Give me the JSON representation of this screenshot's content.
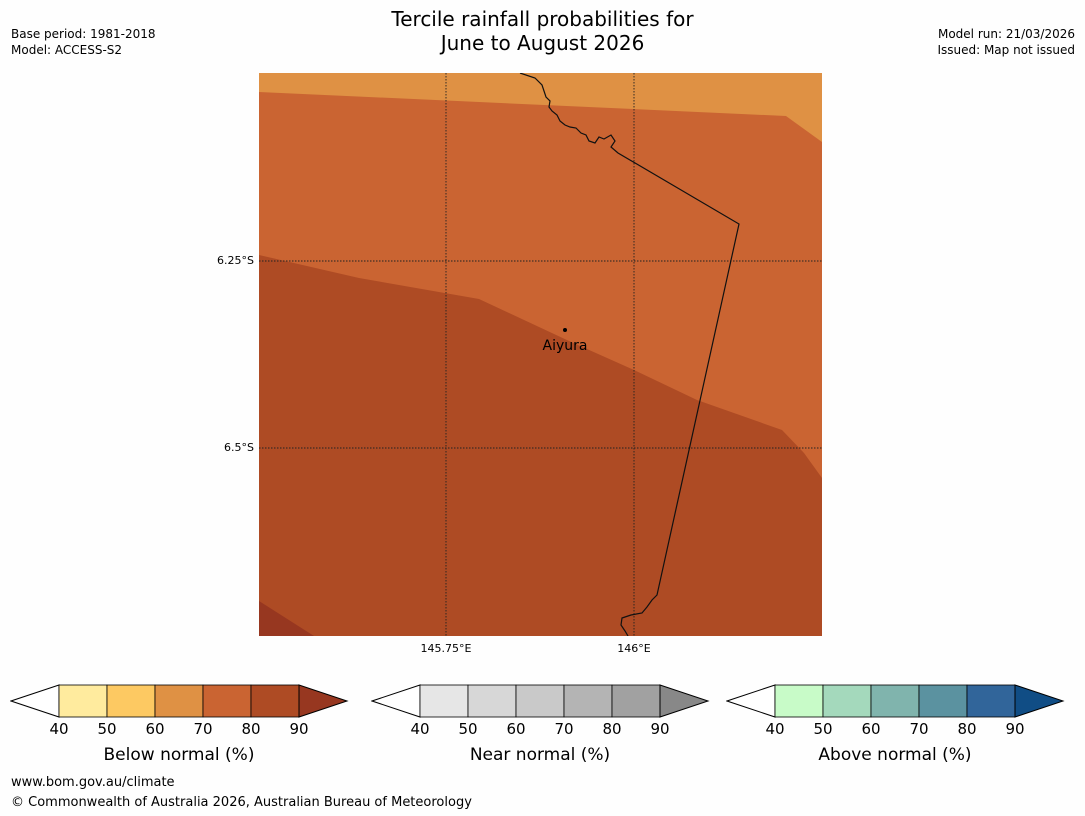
{
  "header": {
    "title_line1": "Tercile rainfall probabilities for",
    "title_line2": "June to August 2026",
    "base_period": "Base period: 1981-2018",
    "model": "Model: ACCESS-S2",
    "model_run": "Model run: 21/03/2026",
    "issued": "Issued: Map not issued"
  },
  "map": {
    "lat_labels": [
      "6.25°S",
      "6.5°S"
    ],
    "lon_labels": [
      "145.75°E",
      "146°E"
    ],
    "place": {
      "name": "Aiyura"
    },
    "fill_colors": {
      "cat_60_70": "#df9144",
      "cat_70_80": "#ca6432",
      "cat_80_90": "#ae4b24",
      "cat_90_plus": "#973720"
    }
  },
  "colorbars": [
    {
      "label": "Below normal (%)",
      "ticks": [
        "40",
        "50",
        "60",
        "70",
        "80",
        "90"
      ],
      "colors": [
        "#ffeb9e",
        "#fdc962",
        "#df9144",
        "#ca6432",
        "#ae4b24"
      ],
      "extend_color": "#973720"
    },
    {
      "label": "Near normal (%)",
      "ticks": [
        "40",
        "50",
        "60",
        "70",
        "80",
        "90"
      ],
      "colors": [
        "#e6e6e6",
        "#d7d7d7",
        "#c9c9c9",
        "#b4b4b4",
        "#a1a1a1"
      ],
      "extend_color": "#888888"
    },
    {
      "label": "Above normal (%)",
      "ticks": [
        "40",
        "50",
        "60",
        "70",
        "80",
        "90"
      ],
      "colors": [
        "#c8fbc8",
        "#a4d9bc",
        "#80b4ad",
        "#5b92a0",
        "#31659a"
      ],
      "extend_color": "#104d85"
    }
  ],
  "footer": {
    "url": "www.bom.gov.au/climate",
    "copyright": "© Commonwealth of Australia 2026, Australian Bureau of Meteorology"
  }
}
